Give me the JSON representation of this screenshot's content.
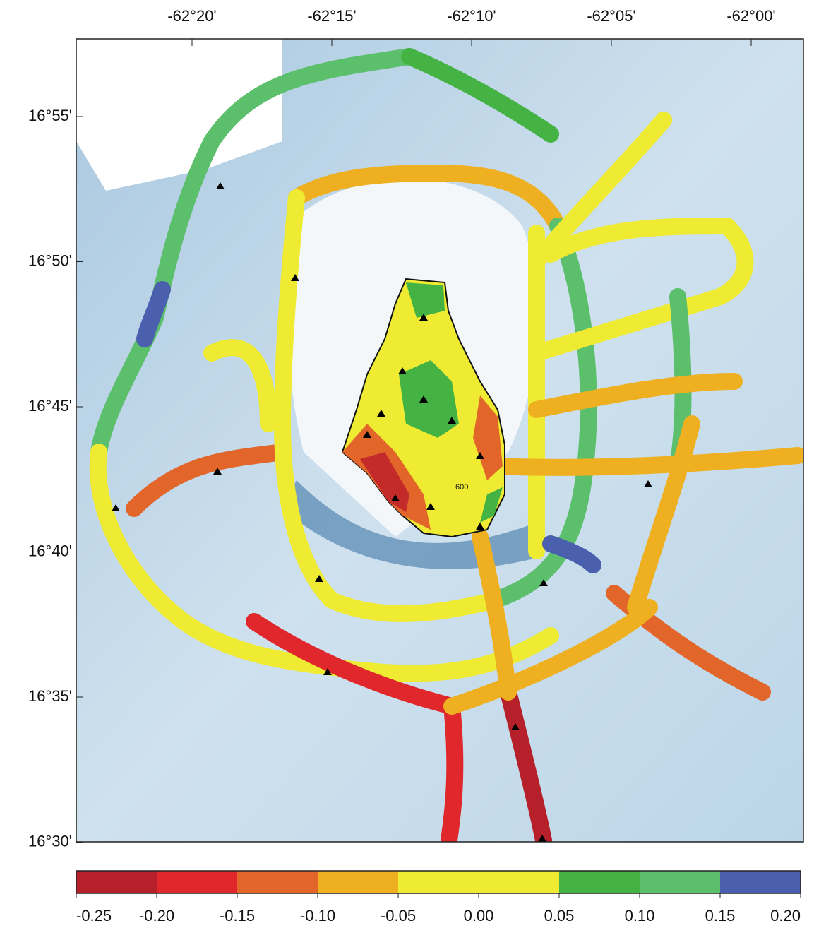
{
  "map": {
    "lon_labels": [
      "-62°20'",
      "-62°15'",
      "-62°10'",
      "-62°05'",
      "-62°00'"
    ],
    "lat_labels": [
      "16°55'",
      "16°50'",
      "16°45'",
      "16°40'",
      "16°35'",
      "16°30'"
    ],
    "contour_label": "600"
  },
  "colorbar": {
    "range": [
      -0.25,
      0.2
    ],
    "ticks": [
      -0.25,
      {
        "value": -0.2,
        "label": "-0.20"
      },
      -0.15,
      {
        "value": -0.1,
        "label": "-0.10"
      },
      -0.05,
      {
        "value": 0,
        "label": "0.00"
      },
      0.05,
      {
        "value": 0.1,
        "label": "0.10"
      },
      0.15,
      {
        "value": 0.2,
        "label": "0.20"
      }
    ],
    "colors": [
      "#b5202a",
      "#e0282c",
      "#e2662a",
      "#eeb020",
      "#eeeb32",
      "#eeeb32",
      "#44b343",
      "#5cbf6c",
      "#4a5fae"
    ]
  }
}
